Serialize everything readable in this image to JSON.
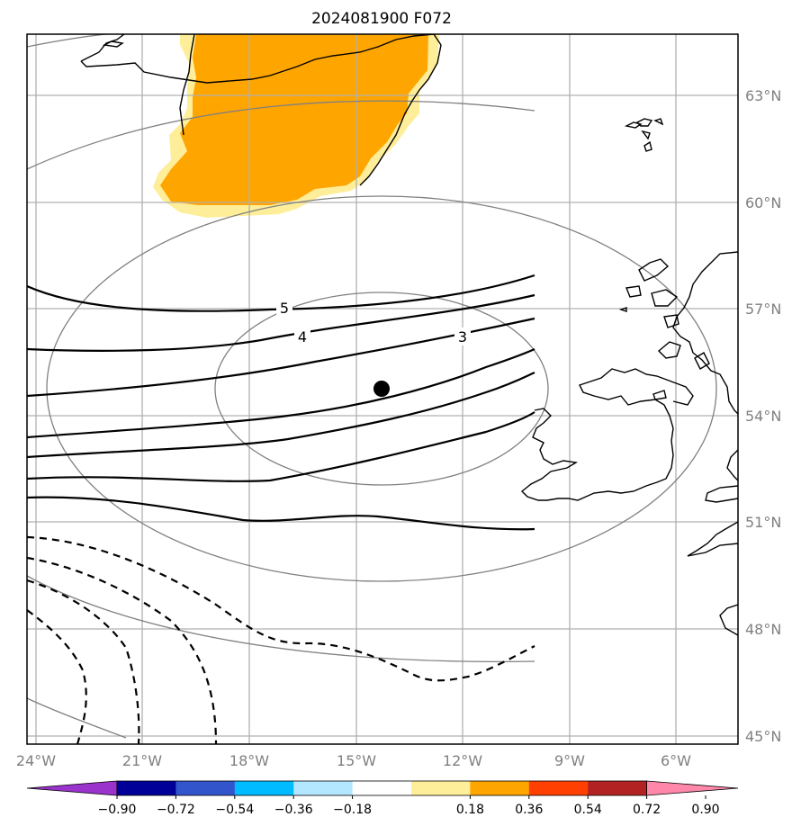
{
  "title": "2024081900 F072",
  "map": {
    "lon_labels": [
      "24°W",
      "21°W",
      "18°W",
      "15°W",
      "12°W",
      "9°W",
      "6°W"
    ],
    "lat_labels": [
      "63°N",
      "60°N",
      "57°N",
      "54°N",
      "51°N",
      "48°N",
      "45°N"
    ],
    "contour_labels": [
      "5",
      "4",
      "3"
    ],
    "point_marker": "black-dot",
    "colors": {
      "land_outline": "#000000",
      "grid": "#b0b0b0",
      "ellipse": "#808080",
      "shade_orange": "#ffa500",
      "shade_yellow": "#ffee99"
    }
  },
  "colorbar": {
    "colors": [
      "#9933cc",
      "#000099",
      "#3355cc",
      "#00bbff",
      "#b3e6ff",
      "#ffffff",
      "#ffee99",
      "#ffa500",
      "#ff4000",
      "#b22222",
      "#ff88aa"
    ],
    "ticks": [
      "−0.90",
      "−0.72",
      "−0.54",
      "−0.36",
      "−0.18",
      "0.18",
      "0.36",
      "0.54",
      "0.72",
      "0.90"
    ]
  }
}
